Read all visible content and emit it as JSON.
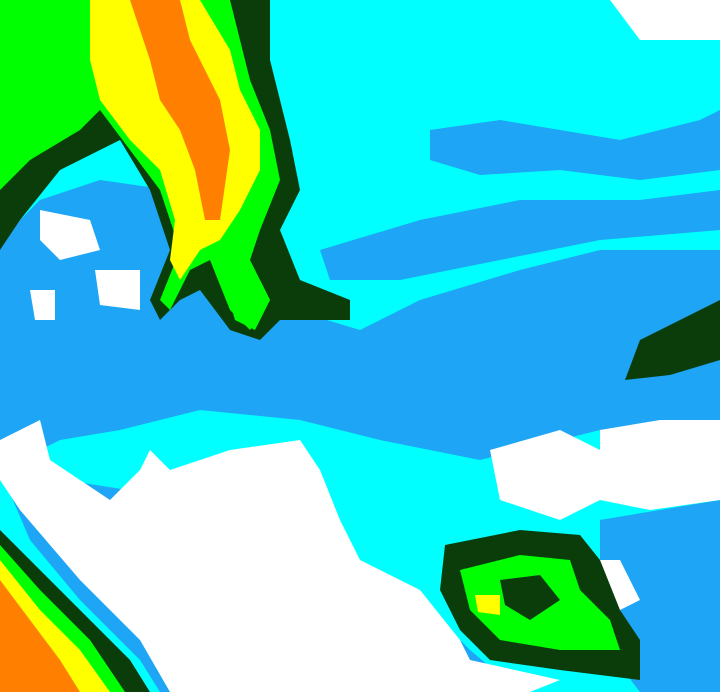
{
  "map": {
    "type": "classified raster",
    "legend_shown": false,
    "class_colors": {
      "white": "#ffffff",
      "light_blue": "#1ea5f5",
      "cyan": "#00ffff",
      "dark_green": "#0b3d0b",
      "green": "#00ff00",
      "yellow": "#ffff00",
      "orange": "#ff8000"
    }
  }
}
